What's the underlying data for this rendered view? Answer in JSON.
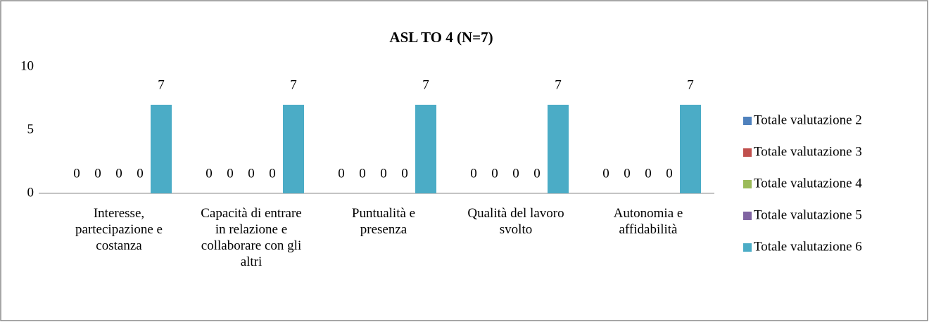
{
  "chart_data": {
    "type": "bar",
    "title": "ASL TO 4 (N=7)",
    "categories": [
      "Interesse, partecipazione e costanza",
      "Capacità di entrare in relazione e collaborare con gli altri",
      "Puntualità e presenza",
      "Qualità del lavoro svolto",
      "Autonomia e affidabilità"
    ],
    "series": [
      {
        "name": "Totale valutazione 2",
        "color": "#4f81bd",
        "values": [
          0,
          0,
          0,
          0,
          0
        ]
      },
      {
        "name": "Totale valutazione 3",
        "color": "#c0504d",
        "values": [
          0,
          0,
          0,
          0,
          0
        ]
      },
      {
        "name": "Totale valutazione 4",
        "color": "#9bbb59",
        "values": [
          0,
          0,
          0,
          0,
          0
        ]
      },
      {
        "name": "Totale valutazione 5",
        "color": "#8064a2",
        "values": [
          0,
          0,
          0,
          0,
          0
        ]
      },
      {
        "name": "Totale valutazione 6",
        "color": "#4bacc6",
        "values": [
          7,
          7,
          7,
          7,
          7
        ]
      }
    ],
    "ylim": [
      0,
      10
    ],
    "yticks": [
      0,
      5,
      10
    ],
    "grid": false,
    "legend": "right"
  }
}
